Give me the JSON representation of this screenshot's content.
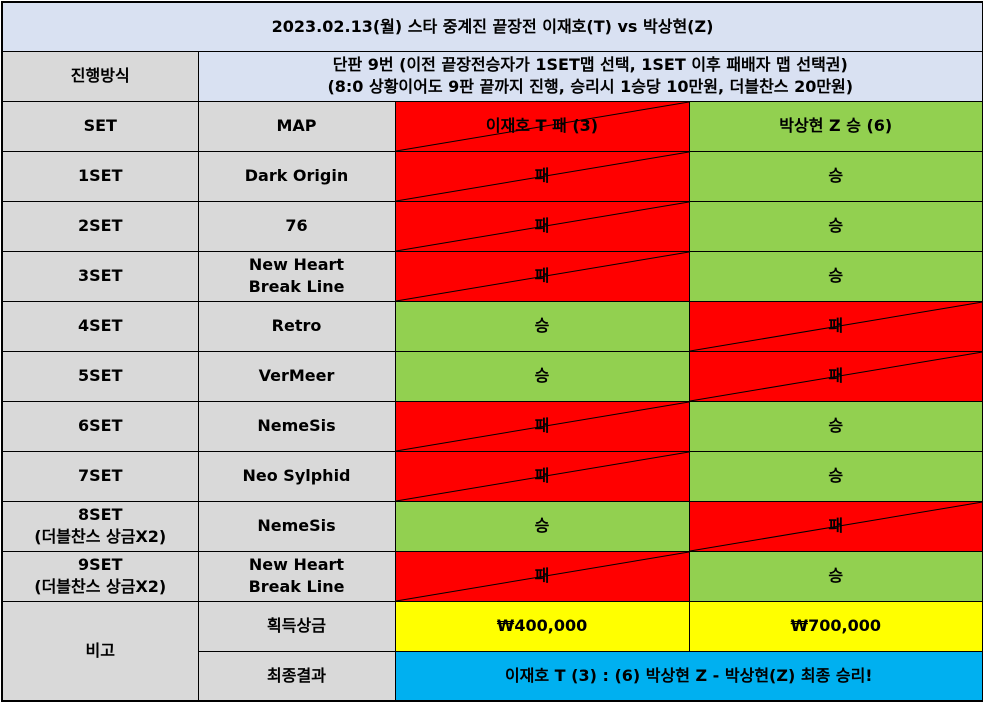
{
  "title": "2023.02.13(월) 스타 중계진 끝장전 이재호(T) vs 박상현(Z)",
  "format": {
    "label": "진행방식",
    "line1": "단판 9번 (이전 끝장전승자가 1SET맵 선택, 1SET 이후 패배자 맵 선택권)",
    "line2": "(8:0 상황이어도 9판 끝까지 진행, 승리시 1승당 10만원, 더블찬스 20만원)"
  },
  "header": {
    "set": "SET",
    "map": "MAP",
    "player1": "이재호 T 패 (3)",
    "player2": "박상현 Z 승 (6)"
  },
  "sets": [
    {
      "set": "1SET",
      "sub": "",
      "map1": "Dark Origin",
      "map2": "",
      "p1": "패",
      "p2": "승"
    },
    {
      "set": "2SET",
      "sub": "",
      "map1": "76",
      "map2": "",
      "p1": "패",
      "p2": "승"
    },
    {
      "set": "3SET",
      "sub": "",
      "map1": "New Heart",
      "map2": "Break Line",
      "p1": "패",
      "p2": "승"
    },
    {
      "set": "4SET",
      "sub": "",
      "map1": "Retro",
      "map2": "",
      "p1": "승",
      "p2": "패"
    },
    {
      "set": "5SET",
      "sub": "",
      "map1": "VerMeer",
      "map2": "",
      "p1": "승",
      "p2": "패"
    },
    {
      "set": "6SET",
      "sub": "",
      "map1": "NemeSis",
      "map2": "",
      "p1": "패",
      "p2": "승"
    },
    {
      "set": "7SET",
      "sub": "",
      "map1": "Neo Sylphid",
      "map2": "",
      "p1": "패",
      "p2": "승"
    },
    {
      "set": "8SET",
      "sub": "(더블찬스 상금X2)",
      "map1": "NemeSis",
      "map2": "",
      "p1": "승",
      "p2": "패"
    },
    {
      "set": "9SET",
      "sub": "(더블찬스 상금X2)",
      "map1": "New Heart",
      "map2": "Break Line",
      "p1": "패",
      "p2": "승"
    }
  ],
  "notes": {
    "label": "비고",
    "prize_label": "획득상금",
    "prize1": "₩400,000",
    "prize2": "₩700,000",
    "result_label": "최종결과",
    "result": "이재호 T (3) : (6) 박상현 Z - 박상현(Z) 최종 승리!"
  },
  "colors": {
    "header_bg": "#d9e1f2",
    "label_bg": "#d9d9d9",
    "lose_bg": "#ff0000",
    "win_bg": "#92d050",
    "prize_bg": "#ffff00",
    "final_bg": "#00b0f0"
  }
}
